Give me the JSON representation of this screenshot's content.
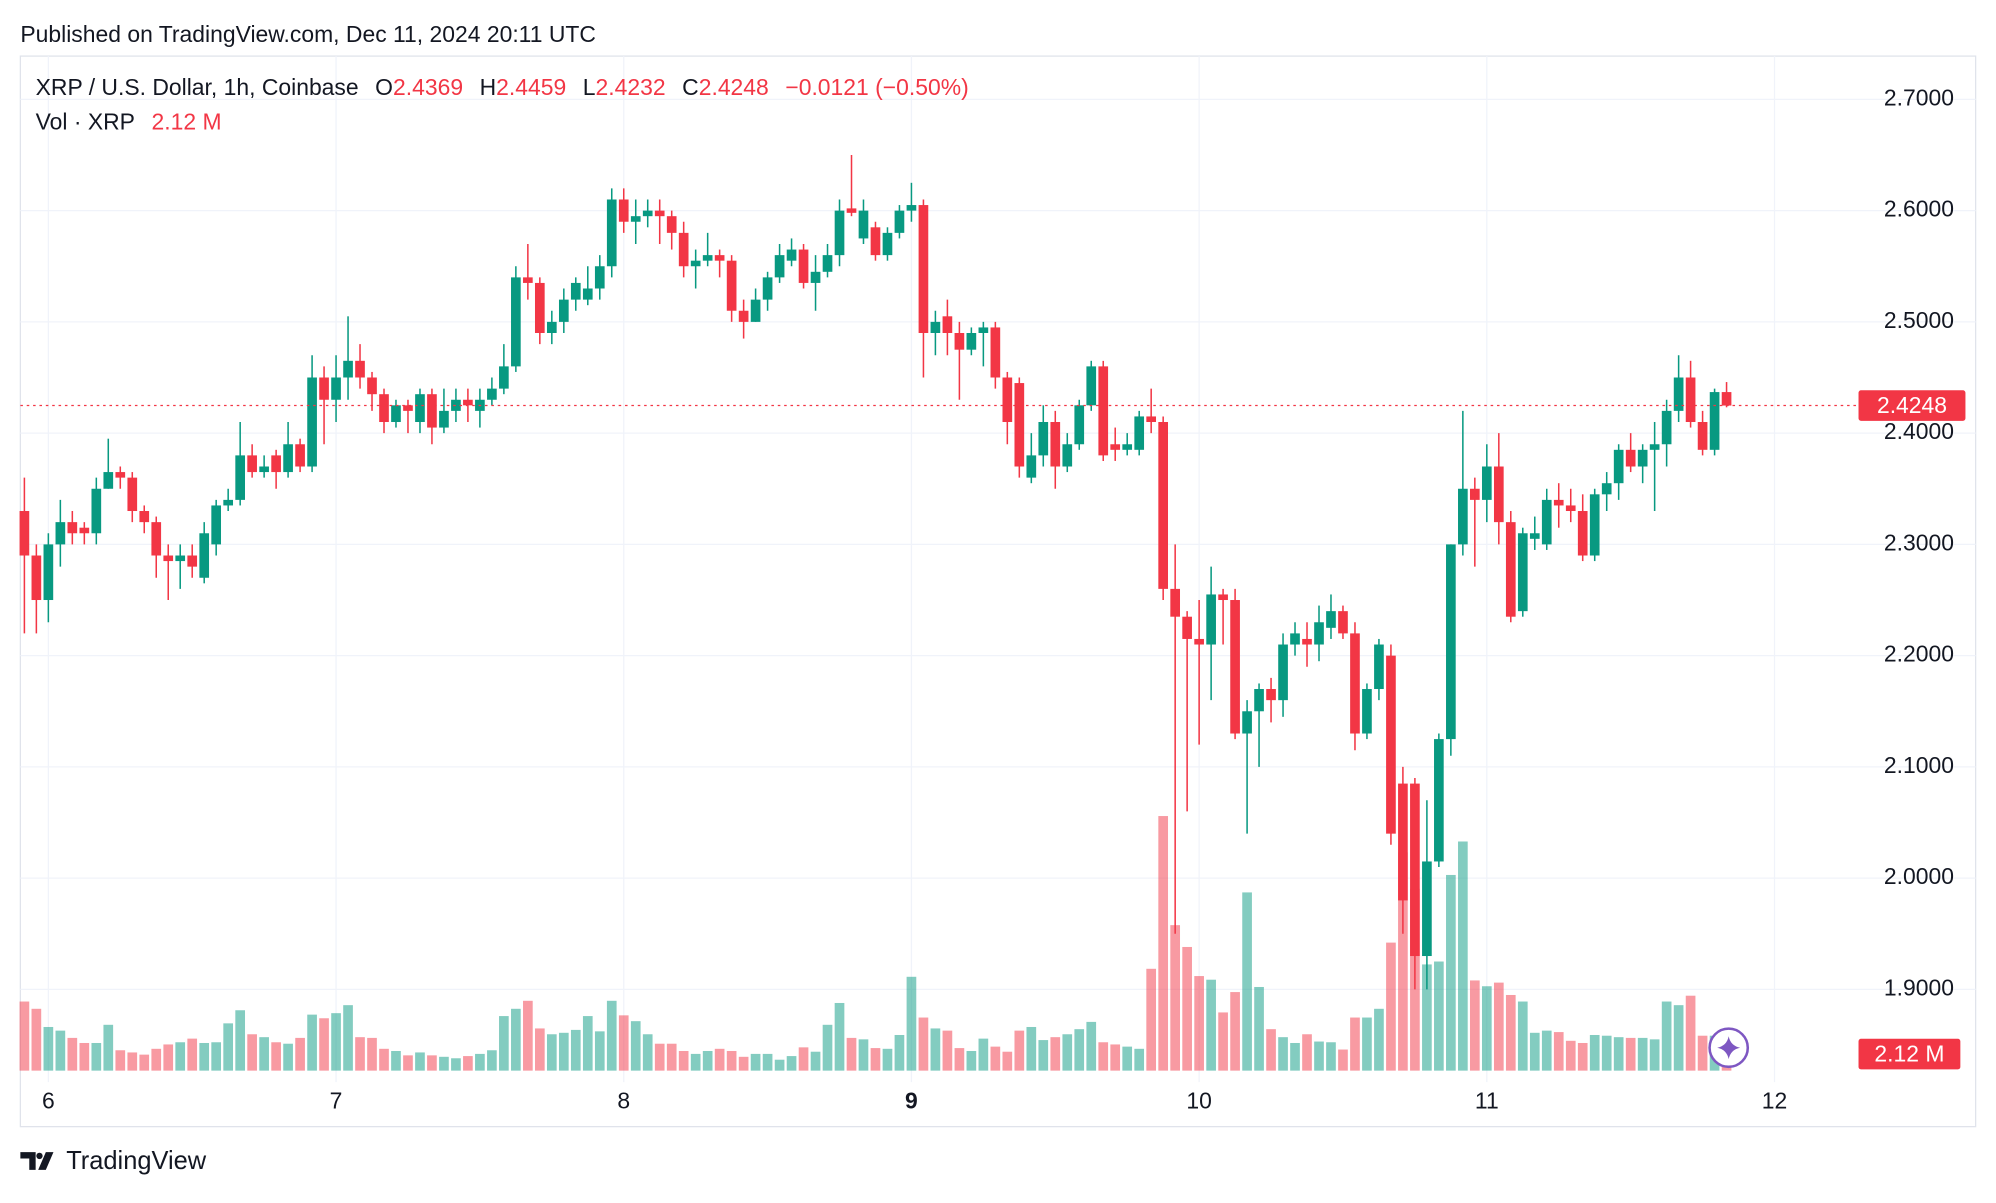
{
  "published": "Published on TradingView.com, Dec 11, 2024 20:11 UTC",
  "brand": "TradingView",
  "chart_data": {
    "type": "candlestick",
    "title": "XRP / U.S. Dollar, 1h, Coinbase",
    "ohlc_letters": [
      "O",
      "H",
      "L",
      "C"
    ],
    "change": "−0.0121 (−0.50%)",
    "volume_title": "Vol · XRP",
    "volume_label": "2.12 M",
    "colors": {
      "up": "#089981",
      "down": "#f23645"
    },
    "grid": true,
    "xlim": [
      5.9027,
      12.2566
    ],
    "xticks": [
      6,
      7,
      8,
      9,
      10,
      11,
      12
    ],
    "ylim": [
      1.8167,
      2.7389
    ],
    "yticks": [
      {
        "value": 1.9,
        "label": "1.9000"
      },
      {
        "value": 2.0,
        "label": "2.0000"
      },
      {
        "value": 2.1,
        "label": "2.1000"
      },
      {
        "value": 2.2,
        "label": "2.2000"
      },
      {
        "value": 2.3,
        "label": "2.3000"
      },
      {
        "value": 2.4,
        "label": "2.4000"
      },
      {
        "value": 2.5,
        "label": "2.5000"
      },
      {
        "value": 2.6,
        "label": "2.6000"
      },
      {
        "value": 2.7,
        "label": "2.7000"
      }
    ],
    "x": [
      5.9167,
      5.9583,
      6,
      6.0417,
      6.0833,
      6.125,
      6.1667,
      6.2083,
      6.25,
      6.2917,
      6.3333,
      6.375,
      6.4167,
      6.4583,
      6.5,
      6.5417,
      6.5833,
      6.625,
      6.6667,
      6.7083,
      6.75,
      6.7917,
      6.8333,
      6.875,
      6.9167,
      6.9583,
      7,
      7.0417,
      7.0833,
      7.125,
      7.1667,
      7.2083,
      7.25,
      7.2917,
      7.3333,
      7.375,
      7.4167,
      7.4583,
      7.5,
      7.5417,
      7.5833,
      7.625,
      7.6667,
      7.7083,
      7.75,
      7.7917,
      7.8333,
      7.875,
      7.9167,
      7.9583,
      8,
      8.0417,
      8.0833,
      8.125,
      8.1667,
      8.2083,
      8.25,
      8.2917,
      8.3333,
      8.375,
      8.4167,
      8.4583,
      8.5,
      8.5417,
      8.5833,
      8.625,
      8.6667,
      8.7083,
      8.75,
      8.7917,
      8.8333,
      8.875,
      8.9167,
      8.9583,
      9,
      9.0417,
      9.0833,
      9.125,
      9.1667,
      9.2083,
      9.25,
      9.2917,
      9.3333,
      9.375,
      9.4167,
      9.4583,
      9.5,
      9.5417,
      9.5833,
      9.625,
      9.6667,
      9.7083,
      9.75,
      9.7917,
      9.8333,
      9.875,
      9.9167,
      9.9583,
      10,
      10.0417,
      10.0833,
      10.125,
      10.1667,
      10.2083,
      10.25,
      10.2917,
      10.3333,
      10.375,
      10.4167,
      10.4583,
      10.5,
      10.5417,
      10.5833,
      10.625,
      10.6667,
      10.7083,
      10.75,
      10.7917,
      10.8333,
      10.875,
      10.9167,
      10.9583,
      11,
      11.0417,
      11.0833,
      11.125,
      11.1667,
      11.2083,
      11.25,
      11.2917,
      11.3333,
      11.375,
      11.4167,
      11.4583,
      11.5,
      11.5417,
      11.5833,
      11.625,
      11.6667,
      11.7083,
      11.75,
      11.7917,
      11.8333
    ],
    "open": [
      2.33,
      2.29,
      2.25,
      2.3,
      2.32,
      2.315,
      2.31,
      2.35,
      2.365,
      2.36,
      2.33,
      2.32,
      2.29,
      2.285,
      2.29,
      2.27,
      2.3,
      2.335,
      2.34,
      2.38,
      2.365,
      2.38,
      2.365,
      2.39,
      2.37,
      2.45,
      2.43,
      2.45,
      2.465,
      2.45,
      2.435,
      2.41,
      2.425,
      2.41,
      2.435,
      2.405,
      2.42,
      2.43,
      2.42,
      2.43,
      2.44,
      2.46,
      2.54,
      2.535,
      2.49,
      2.5,
      2.52,
      2.52,
      2.53,
      2.55,
      2.61,
      2.59,
      2.595,
      2.6,
      2.595,
      2.58,
      2.55,
      2.555,
      2.56,
      2.555,
      2.51,
      2.5,
      2.52,
      2.54,
      2.555,
      2.565,
      2.535,
      2.545,
      2.56,
      2.602,
      2.575,
      2.585,
      2.56,
      2.58,
      2.6,
      2.605,
      2.49,
      2.505,
      2.49,
      2.475,
      2.49,
      2.495,
      2.45,
      2.445,
      2.36,
      2.38,
      2.41,
      2.37,
      2.39,
      2.425,
      2.46,
      2.39,
      2.385,
      2.385,
      2.415,
      2.41,
      2.26,
      2.235,
      2.215,
      2.21,
      2.255,
      2.25,
      2.13,
      2.15,
      2.17,
      2.16,
      2.21,
      2.215,
      2.21,
      2.225,
      2.24,
      2.22,
      2.13,
      2.17,
      2.2,
      2.085,
      2.085,
      1.93,
      2.015,
      2.125,
      2.3,
      2.35,
      2.34,
      2.37,
      2.32,
      2.24,
      2.305,
      2.3,
      2.34,
      2.335,
      2.33,
      2.29,
      2.345,
      2.355,
      2.385,
      2.37,
      2.385,
      2.39,
      2.42,
      2.45,
      2.41,
      2.385,
      2.4369
    ],
    "high": [
      2.36,
      2.3,
      2.31,
      2.34,
      2.33,
      2.32,
      2.36,
      2.395,
      2.37,
      2.365,
      2.335,
      2.325,
      2.3,
      2.3,
      2.3,
      2.32,
      2.34,
      2.35,
      2.41,
      2.39,
      2.38,
      2.385,
      2.41,
      2.395,
      2.47,
      2.46,
      2.47,
      2.505,
      2.48,
      2.455,
      2.44,
      2.43,
      2.43,
      2.44,
      2.44,
      2.44,
      2.44,
      2.44,
      2.44,
      2.45,
      2.48,
      2.55,
      2.57,
      2.54,
      2.51,
      2.53,
      2.54,
      2.55,
      2.56,
      2.62,
      2.62,
      2.61,
      2.61,
      2.61,
      2.6,
      2.59,
      2.565,
      2.58,
      2.565,
      2.56,
      2.52,
      2.53,
      2.545,
      2.57,
      2.575,
      2.57,
      2.56,
      2.57,
      2.61,
      2.65,
      2.61,
      2.59,
      2.585,
      2.605,
      2.625,
      2.61,
      2.51,
      2.52,
      2.5,
      2.495,
      2.5,
      2.5,
      2.455,
      2.45,
      2.4,
      2.425,
      2.42,
      2.4,
      2.43,
      2.465,
      2.465,
      2.405,
      2.4,
      2.42,
      2.44,
      2.415,
      2.3,
      2.24,
      2.25,
      2.28,
      2.26,
      2.26,
      2.16,
      2.175,
      2.18,
      2.22,
      2.23,
      2.23,
      2.245,
      2.255,
      2.245,
      2.23,
      2.175,
      2.215,
      2.21,
      2.1,
      2.09,
      2.07,
      2.13,
      2.3,
      2.42,
      2.36,
      2.39,
      2.4,
      2.33,
      2.315,
      2.325,
      2.35,
      2.355,
      2.35,
      2.345,
      2.35,
      2.365,
      2.39,
      2.4,
      2.39,
      2.41,
      2.43,
      2.47,
      2.465,
      2.42,
      2.44,
      2.4459
    ],
    "low": [
      2.22,
      2.22,
      2.23,
      2.28,
      2.3,
      2.3,
      2.3,
      2.35,
      2.35,
      2.32,
      2.31,
      2.27,
      2.25,
      2.26,
      2.27,
      2.265,
      2.29,
      2.33,
      2.335,
      2.36,
      2.36,
      2.35,
      2.36,
      2.365,
      2.365,
      2.39,
      2.41,
      2.43,
      2.44,
      2.42,
      2.4,
      2.405,
      2.4,
      2.4,
      2.39,
      2.4,
      2.41,
      2.41,
      2.405,
      2.425,
      2.435,
      2.455,
      2.52,
      2.48,
      2.48,
      2.49,
      2.51,
      2.515,
      2.52,
      2.54,
      2.58,
      2.57,
      2.585,
      2.57,
      2.565,
      2.54,
      2.53,
      2.55,
      2.54,
      2.5,
      2.485,
      2.5,
      2.51,
      2.535,
      2.55,
      2.53,
      2.51,
      2.54,
      2.55,
      2.595,
      2.57,
      2.555,
      2.555,
      2.575,
      2.59,
      2.45,
      2.47,
      2.47,
      2.43,
      2.47,
      2.46,
      2.44,
      2.39,
      2.36,
      2.355,
      2.37,
      2.35,
      2.365,
      2.385,
      2.42,
      2.375,
      2.375,
      2.38,
      2.38,
      2.4,
      2.25,
      1.95,
      2.06,
      2.12,
      2.16,
      2.21,
      2.125,
      2.04,
      2.1,
      2.14,
      2.145,
      2.2,
      2.19,
      2.195,
      2.215,
      2.215,
      2.115,
      2.125,
      2.16,
      2.03,
      1.95,
      1.9,
      1.9,
      2.01,
      2.11,
      2.29,
      2.28,
      2.32,
      2.3,
      2.23,
      2.235,
      2.295,
      2.295,
      2.315,
      2.32,
      2.285,
      2.285,
      2.33,
      2.34,
      2.365,
      2.355,
      2.33,
      2.37,
      2.41,
      2.405,
      2.38,
      2.38,
      2.4232
    ],
    "close": [
      2.29,
      2.25,
      2.3,
      2.32,
      2.31,
      2.31,
      2.35,
      2.365,
      2.36,
      2.33,
      2.32,
      2.29,
      2.285,
      2.29,
      2.28,
      2.31,
      2.335,
      2.34,
      2.38,
      2.365,
      2.37,
      2.365,
      2.39,
      2.37,
      2.45,
      2.43,
      2.45,
      2.465,
      2.45,
      2.435,
      2.41,
      2.425,
      2.42,
      2.435,
      2.405,
      2.42,
      2.43,
      2.425,
      2.43,
      2.44,
      2.46,
      2.54,
      2.535,
      2.49,
      2.5,
      2.52,
      2.535,
      2.53,
      2.55,
      2.61,
      2.59,
      2.595,
      2.6,
      2.595,
      2.58,
      2.55,
      2.555,
      2.56,
      2.555,
      2.51,
      2.5,
      2.52,
      2.54,
      2.56,
      2.565,
      2.535,
      2.545,
      2.56,
      2.6,
      2.598,
      2.6,
      2.56,
      2.58,
      2.6,
      2.605,
      2.49,
      2.5,
      2.49,
      2.475,
      2.49,
      2.495,
      2.45,
      2.41,
      2.37,
      2.38,
      2.41,
      2.37,
      2.39,
      2.425,
      2.46,
      2.38,
      2.385,
      2.39,
      2.415,
      2.41,
      2.26,
      2.235,
      2.215,
      2.21,
      2.255,
      2.25,
      2.13,
      2.15,
      2.17,
      2.16,
      2.21,
      2.22,
      2.21,
      2.23,
      2.24,
      2.22,
      2.13,
      2.17,
      2.21,
      2.04,
      1.98,
      1.93,
      2.015,
      2.125,
      2.3,
      2.35,
      2.34,
      2.37,
      2.32,
      2.235,
      2.31,
      2.31,
      2.34,
      2.335,
      2.33,
      2.29,
      2.345,
      2.355,
      2.385,
      2.37,
      2.385,
      2.39,
      2.42,
      2.45,
      2.41,
      2.385,
      2.4369,
      2.4248
    ],
    "volume": [
      9.5,
      8.5,
      6,
      5.5,
      4.5,
      3.8,
      3.8,
      6.3,
      2.8,
      2.5,
      2.2,
      3,
      3.6,
      3.9,
      4.4,
      3.8,
      3.9,
      6.5,
      8.3,
      5,
      4.6,
      3.9,
      3.7,
      4.5,
      7.7,
      7.2,
      7.9,
      9,
      4.6,
      4.5,
      3,
      2.7,
      2.1,
      2.5,
      2.1,
      1.9,
      1.7,
      2,
      2.3,
      2.8,
      7.5,
      8.5,
      9.6,
      5.8,
      5,
      5.2,
      5.6,
      7.5,
      5.4,
      9.6,
      7.6,
      6.8,
      5,
      3.7,
      3.7,
      2.7,
      2.3,
      2.7,
      3,
      2.7,
      1.9,
      2.3,
      2.3,
      1.5,
      2,
      3.2,
      2.6,
      6.3,
      9.3,
      4.5,
      4.3,
      3.1,
      3,
      4.9,
      12.9,
      7.3,
      5.8,
      5.5,
      3.1,
      2.7,
      4.4,
      3.3,
      2.6,
      5.5,
      6,
      4.2,
      4.6,
      5,
      5.7,
      6.7,
      3.9,
      3.6,
      3.3,
      3,
      14,
      35,
      20,
      17,
      13,
      12.5,
      8,
      10.8,
      24.5,
      11.5,
      5.7,
      4.6,
      3.8,
      5,
      4,
      3.9,
      2.9,
      7.3,
      7.3,
      8.5,
      17.6,
      30,
      25,
      14.6,
      15,
      26.9,
      31.5,
      12.4,
      11.6,
      12.1,
      10.4,
      9.5,
      5.2,
      5.5,
      5.3,
      4.1,
      3.8,
      4.9,
      4.8,
      4.6,
      4.5,
      4.5,
      4.3,
      9.5,
      9,
      10.3,
      4.8,
      4.8,
      2.12
    ]
  }
}
